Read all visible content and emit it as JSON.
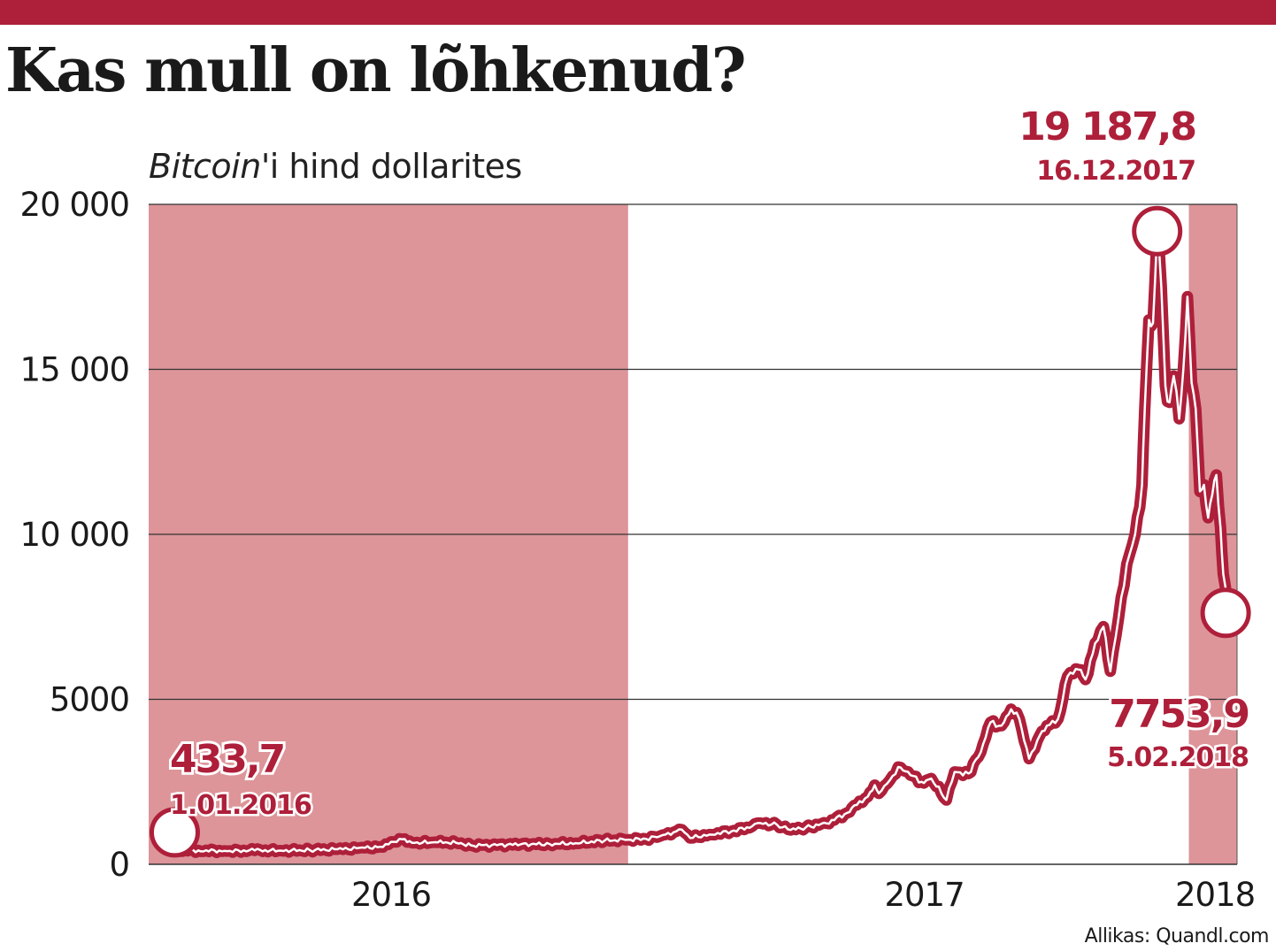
{
  "header": {
    "title": "Kas mull on lõhkenud?",
    "subtitle_italic": "Bitcoin",
    "subtitle_rest": "'i hind dollarites"
  },
  "source": "Allikas: Quandl.com",
  "colors": {
    "accent": "#ae1f3a",
    "shade": "#dd9599",
    "grid": "#333333"
  },
  "chart_data": {
    "type": "line",
    "title": "Kas mull on lõhkenud?",
    "subtitle": "Bitcoin'i hind dollarites",
    "xlabel": "",
    "ylabel": "",
    "xlim": [
      "2015-12-15",
      "2018-02-12"
    ],
    "ylim": [
      0,
      20000
    ],
    "y_ticks": [
      {
        "value": 0,
        "label": "0"
      },
      {
        "value": 5000,
        "label": "5000"
      },
      {
        "value": 10000,
        "label": "10 000"
      },
      {
        "value": 15000,
        "label": "15 000"
      },
      {
        "value": 20000,
        "label": "20 000"
      }
    ],
    "x_ticks": [
      {
        "date": "2016-06-08",
        "label": "2016"
      },
      {
        "date": "2017-06-30",
        "label": "2017"
      },
      {
        "date": "2018-01-27",
        "label": "2018"
      }
    ],
    "grid": "horizontal",
    "shaded_periods": [
      {
        "start": "2015-12-15",
        "end": "2016-11-27"
      },
      {
        "start": "2018-01-08",
        "end": "2018-02-12"
      }
    ],
    "series": [
      {
        "x": [
          "2016-01-01",
          "2016-01-20",
          "2016-02-10",
          "2016-03-01",
          "2016-03-20",
          "2016-04-10",
          "2016-04-30",
          "2016-05-20",
          "2016-05-31",
          "2016-06-10",
          "2016-06-16",
          "2016-06-25",
          "2016-07-10",
          "2016-07-25",
          "2016-08-05",
          "2016-08-20",
          "2016-09-10",
          "2016-10-01",
          "2016-10-20",
          "2016-11-10",
          "2016-11-25",
          "2016-12-10",
          "2016-12-20",
          "2017-01-01",
          "2017-01-05",
          "2017-01-11",
          "2017-01-25",
          "2017-02-10",
          "2017-02-25",
          "2017-03-03",
          "2017-03-15",
          "2017-03-25",
          "2017-04-05",
          "2017-04-20",
          "2017-05-05",
          "2017-05-12",
          "2017-05-20",
          "2017-05-25",
          "2017-05-28",
          "2017-06-05",
          "2017-06-11",
          "2017-06-20",
          "2017-06-28",
          "2017-07-05",
          "2017-07-16",
          "2017-07-22",
          "2017-08-01",
          "2017-08-10",
          "2017-08-17",
          "2017-08-25",
          "2017-09-01",
          "2017-09-07",
          "2017-09-14",
          "2017-09-20",
          "2017-09-27",
          "2017-10-05",
          "2017-10-12",
          "2017-10-20",
          "2017-10-25",
          "2017-11-01",
          "2017-11-07",
          "2017-11-12",
          "2017-11-20",
          "2017-11-26",
          "2017-11-30",
          "2017-12-05",
          "2017-12-07",
          "2017-12-10",
          "2017-12-13",
          "2017-12-16",
          "2017-12-19",
          "2017-12-22",
          "2017-12-25",
          "2017-12-28",
          "2018-01-01",
          "2018-01-04",
          "2018-01-07",
          "2018-01-10",
          "2018-01-13",
          "2018-01-16",
          "2018-01-19",
          "2018-01-22",
          "2018-01-25",
          "2018-01-28",
          "2018-01-31",
          "2018-02-02",
          "2018-02-05"
        ],
        "values": [
          433.7,
          420,
          400,
          420,
          415,
          430,
          455,
          500,
          530,
          680,
          760,
          650,
          670,
          655,
          575,
          580,
          605,
          615,
          640,
          720,
          740,
          770,
          850,
          1000,
          1050,
          800,
          900,
          1000,
          1150,
          1250,
          1200,
          1040,
          1120,
          1240,
          1560,
          1800,
          2050,
          2400,
          2150,
          2550,
          2950,
          2700,
          2500,
          2600,
          1950,
          2800,
          2750,
          3400,
          4300,
          4200,
          4700,
          4400,
          3200,
          3750,
          4200,
          4400,
          5700,
          5900,
          5600,
          6700,
          7200,
          5850,
          8100,
          9400,
          10000,
          11500,
          13800,
          16500,
          16400,
          19187.8,
          17500,
          14500,
          14000,
          14800,
          13500,
          15000,
          17200,
          14600,
          13800,
          11300,
          11500,
          10500,
          11200,
          11800,
          10200,
          8800,
          7753.9
        ]
      }
    ],
    "annotations": [
      {
        "value": "433,7",
        "date": "1.01.2016"
      },
      {
        "value": "19 187,8",
        "date": "16.12.2017"
      },
      {
        "value": "7753,9",
        "date": "5.02.2018"
      }
    ]
  }
}
